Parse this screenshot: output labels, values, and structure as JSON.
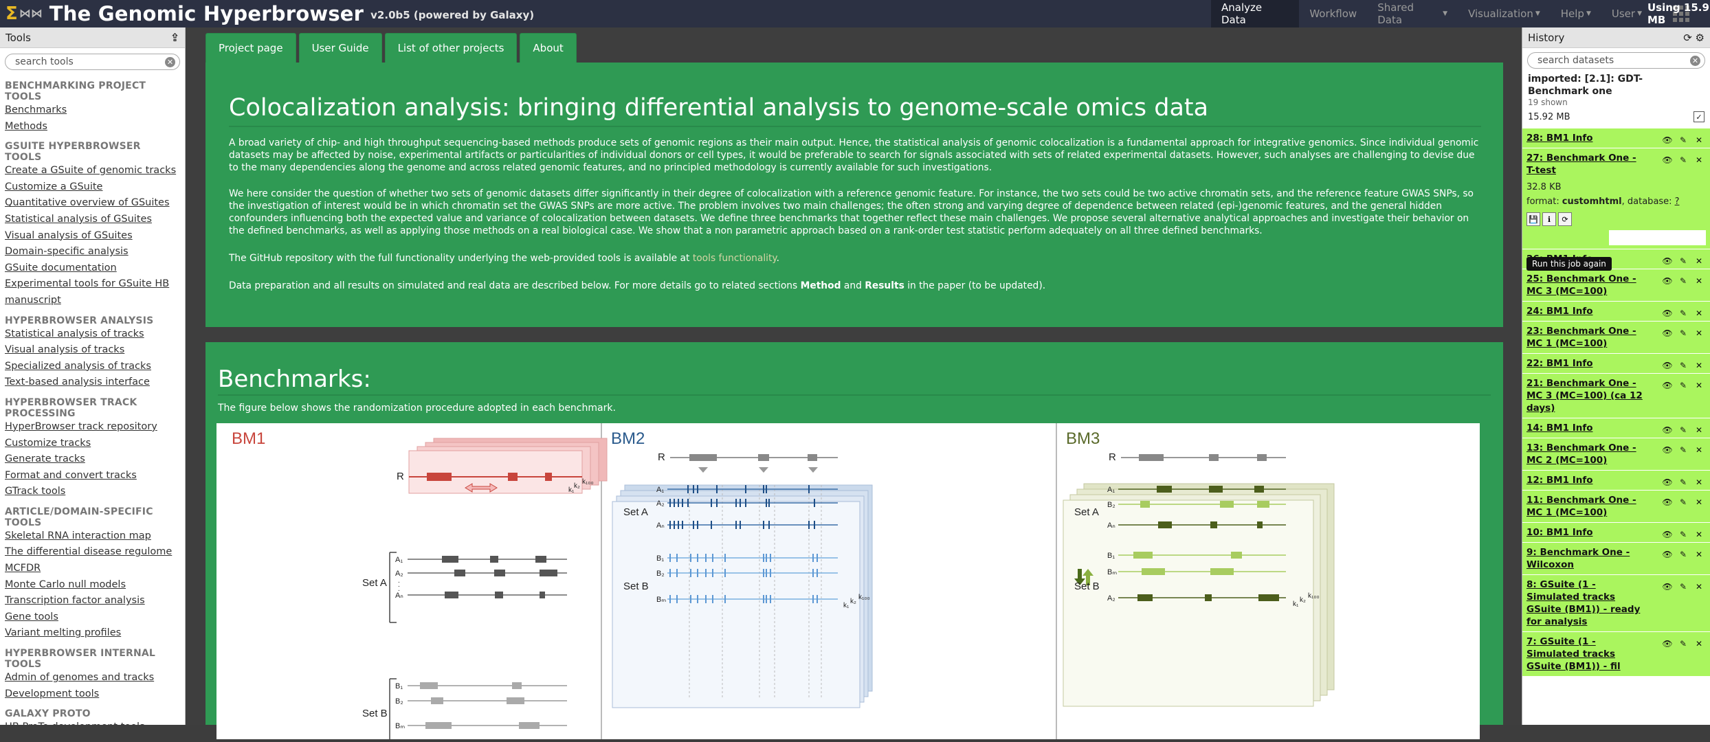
{
  "masthead": {
    "brand": "The Genomic Hyperbrowser",
    "version": "v2.0b5 (powered by Galaxy)",
    "nav": [
      "Analyze Data",
      "Workflow",
      "Shared Data",
      "Visualization",
      "Help",
      "User"
    ],
    "quota": "Using 15.9 MB"
  },
  "tools_panel": {
    "title": "Tools",
    "search_placeholder": "search tools",
    "sections": [
      {
        "title": "BENCHMARKING PROJECT TOOLS",
        "items": [
          "Benchmarks",
          "Methods"
        ]
      },
      {
        "title": "GSUITE HYPERBROWSER TOOLS",
        "items": [
          "Create a GSuite of genomic tracks",
          "Customize a GSuite",
          "Quantitative overview of GSuites",
          "Statistical analysis of GSuites",
          "Visual analysis of GSuites",
          "Domain-specific analysis",
          "GSuite documentation",
          "Experimental tools for GSuite HB manuscript"
        ]
      },
      {
        "title": "HYPERBROWSER ANALYSIS",
        "items": [
          "Statistical analysis of tracks",
          "Visual analysis of tracks",
          "Specialized analysis of tracks",
          "Text-based analysis interface"
        ]
      },
      {
        "title": "HYPERBROWSER TRACK PROCESSING",
        "items": [
          "HyperBrowser track repository",
          "Customize tracks",
          "Generate tracks",
          "Format and convert tracks",
          "GTrack tools"
        ]
      },
      {
        "title": "ARTICLE/DOMAIN-SPECIFIC TOOLS",
        "items": [
          "Skeletal RNA interaction map",
          "The differential disease regulome",
          "MCFDR",
          "Monte Carlo null models",
          "Transcription factor analysis",
          "Gene tools",
          "Variant melting profiles"
        ]
      },
      {
        "title": "HYPERBROWSER INTERNAL TOOLS",
        "items": [
          "Admin of genomes and tracks",
          "Development tools"
        ]
      },
      {
        "title": "GALAXY PROTO",
        "items": [
          "HB ProTo development tools"
        ]
      }
    ]
  },
  "tabs": [
    "Project page",
    "User Guide",
    "List of other projects",
    "About"
  ],
  "main": {
    "title": "Colocalization analysis: bringing differential analysis to genome-scale omics data",
    "para1": "A broad variety of chip- and high throughput sequencing-based methods produce sets of genomic regions as their main output. Hence, the statistical analysis of genomic colocalization is a fundamental approach for integrative genomics. Since individual genomic datasets may be affected by noise, experimental artifacts or particularities of individual donors or cell types, it would be preferable to search for signals associated with sets of related experimental datasets. However, such analyses are challenging to devise due to the many dependencies along the genome and across related genomic features, and no principled methodology is currently available for such investigations.",
    "para2": "We here consider the question of whether two sets of genomic datasets differ significantly in their degree of colocalization with a reference genomic feature. For instance, the two sets could be two active chromatin sets, and the reference feature GWAS SNPs, so the investigation of interest would be in which chromatin set the GWAS SNPs are more active. The problem involves two main challenges; the often strong and varying degree of dependence between related (epi-)genomic features, and the general hidden confounders influencing both the expected value and variance of colocalization between datasets. We define three benchmarks that together reflect these main challenges. We propose several alternative analytical approaches and investigate their behavior on the defined benchmarks, as well as applying those methods on a real biological case. We show that a non parametric approach based on a rank-order test statistic perform adequately on all three defined benchmarks.",
    "para3_pre": "The GitHub repository with the full functionality underlying the web-provided tools is available at",
    "para3_link": "tools functionality",
    "para4_pre": "Data preparation and all results on simulated and real data are described below. For more details go to related sections",
    "para4_b1": "Method",
    "para4_and": "and",
    "para4_b2": "Results",
    "para4_post": "in the paper (to be updated).",
    "bench_title": "Benchmarks:",
    "bench_caption": "The figure below shows the randomization procedure adopted in each benchmark."
  },
  "figure": {
    "titles": [
      "BM1",
      "BM2",
      "BM3"
    ],
    "labels": {
      "R": "R",
      "setA": "Set A",
      "setB": "Set B",
      "a1": "A₁",
      "a2": "A₂",
      "an": "Aₙ",
      "b1": "B₁",
      "b2": "B₂",
      "bm": "Bₘ",
      "k1": "k₁",
      "k2": "k₂",
      "k100": "k₁₀₀",
      "dot": "."
    },
    "colors": {
      "bm1": "#c8453c",
      "bm2": "#2a5a8c",
      "bm3": "#5a6a2a"
    }
  },
  "history": {
    "title": "History",
    "search_placeholder": "search datasets",
    "name": "imported: [2.1]: GDT- Benchmark one",
    "shown": "19 shown",
    "size": "15.92 MB",
    "tooltip": "Run this job again",
    "expanded": {
      "size": "32.8 KB",
      "format_label": "format:",
      "format": "customhtml",
      "db_label": ", database:",
      "db": "?"
    },
    "items": [
      "28: BM1 Info",
      "27: Benchmark One - T-test",
      "26: BM1 Info",
      "25: Benchmark One - MC 3 (MC=100)",
      "24: BM1 Info",
      "23: Benchmark One - MC 1 (MC=100)",
      "22: BM1 Info",
      "21: Benchmark One - MC 3 (MC=100) (ca 12 days)",
      "14: BM1 Info",
      "13: Benchmark One - MC 2 (MC=100)",
      "12: BM1 Info",
      "11: Benchmark One - MC 1 (MC=100)",
      "10: BM1 Info",
      "9: Benchmark One - Wilcoxon",
      "8: GSuite (1 - Simulated tracks GSuite (BM1)) - ready for analysis",
      "7: GSuite (1 - Simulated tracks GSuite (BM1)) - fil"
    ]
  }
}
